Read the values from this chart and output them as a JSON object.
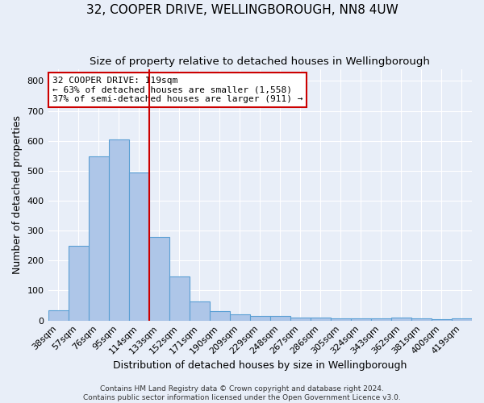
{
  "title1": "32, COOPER DRIVE, WELLINGBOROUGH, NN8 4UW",
  "title2": "Size of property relative to detached houses in Wellingborough",
  "xlabel": "Distribution of detached houses by size in Wellingborough",
  "ylabel": "Number of detached properties",
  "categories": [
    "38sqm",
    "57sqm",
    "76sqm",
    "95sqm",
    "114sqm",
    "133sqm",
    "152sqm",
    "171sqm",
    "190sqm",
    "209sqm",
    "229sqm",
    "248sqm",
    "267sqm",
    "286sqm",
    "305sqm",
    "324sqm",
    "343sqm",
    "362sqm",
    "381sqm",
    "400sqm",
    "419sqm"
  ],
  "values": [
    35,
    248,
    549,
    605,
    493,
    278,
    147,
    63,
    32,
    20,
    15,
    15,
    10,
    10,
    8,
    8,
    7,
    10,
    8,
    3,
    8
  ],
  "bar_color": "#aec6e8",
  "bar_edge_color": "#5a9fd4",
  "bg_color": "#e8eef8",
  "grid_color": "#ffffff",
  "vline_x": 4.5,
  "vline_color": "#cc0000",
  "annotation_line1": "32 COOPER DRIVE: 119sqm",
  "annotation_line2": "← 63% of detached houses are smaller (1,558)",
  "annotation_line3": "37% of semi-detached houses are larger (911) →",
  "annotation_box_color": "#ffffff",
  "annotation_box_edge": "#cc0000",
  "ylim": [
    0,
    840
  ],
  "yticks": [
    0,
    100,
    200,
    300,
    400,
    500,
    600,
    700,
    800
  ],
  "footer": "Contains HM Land Registry data © Crown copyright and database right 2024.\nContains public sector information licensed under the Open Government Licence v3.0.",
  "title1_fontsize": 11,
  "title2_fontsize": 9.5,
  "xlabel_fontsize": 9,
  "ylabel_fontsize": 9,
  "tick_fontsize": 8,
  "annotation_fontsize": 8,
  "footer_fontsize": 6.5
}
